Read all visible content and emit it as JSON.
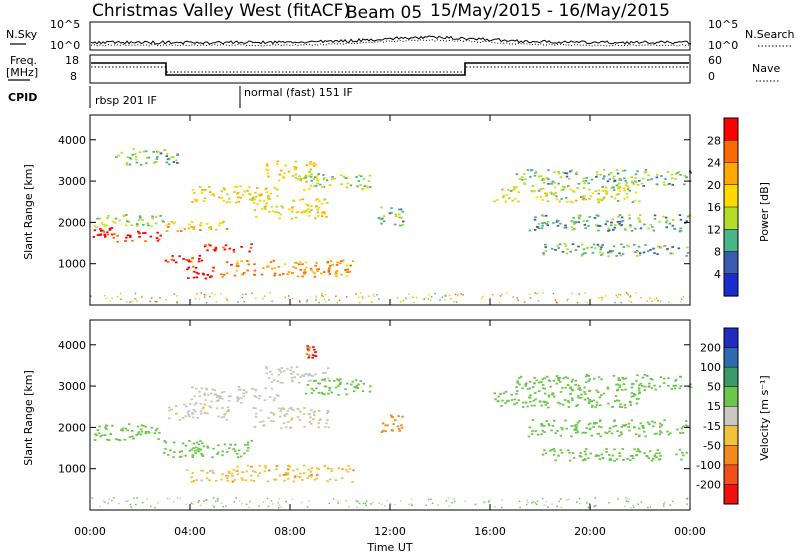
{
  "header": {
    "site": "Christmas Valley West (fitACF)",
    "beam": "Beam 05",
    "dates": "15/May/2015 - 16/May/2015"
  },
  "top_panels": {
    "nsky_label": "N.Sky",
    "nsearch_label": "N.Search",
    "noise_ticks_left": [
      "10^5",
      "10^0"
    ],
    "noise_ticks_right": [
      "10^5",
      "10^0"
    ],
    "freq_label": "Freq.",
    "freq_unit": "[MHz]",
    "freq_ticks": [
      "18",
      "8"
    ],
    "nave_label": "Nave",
    "nave_ticks": [
      "60",
      "0"
    ],
    "cpid_label": "CPID",
    "cpid_segments": [
      {
        "start_hour": 0,
        "name": "rbsp 201 IF"
      },
      {
        "start_hour": 6,
        "name": "normal (fast) 151 IF"
      }
    ]
  },
  "chart_data": [
    {
      "type": "heatmap",
      "title": "",
      "xlabel": "",
      "ylabel": "Slant Range [km]",
      "xlim": [
        0,
        24
      ],
      "ylim": [
        0,
        4600
      ],
      "y_ticks": [
        1000,
        2000,
        3000,
        4000
      ],
      "colorbar": {
        "label": "Power [dB]",
        "ticks": [
          "28",
          "24",
          "20",
          "16",
          "12",
          "8",
          "4"
        ],
        "colors": [
          "#ff0000",
          "#ff6a00",
          "#ffa800",
          "#ffd800",
          "#b4dc28",
          "#4ab48a",
          "#3c5cb0",
          "#1a2ccc"
        ]
      },
      "echo_regions": [
        {
          "x": [
            0.1,
            0.9
          ],
          "y": [
            1650,
            1900
          ],
          "level": 27
        },
        {
          "x": [
            0.9,
            2.9
          ],
          "y": [
            1550,
            1800
          ],
          "level": 26
        },
        {
          "x": [
            2.9,
            4.5
          ],
          "y": [
            1050,
            1250
          ],
          "level": 26
        },
        {
          "x": [
            4.5,
            6.5
          ],
          "y": [
            1300,
            1500
          ],
          "level": 25
        },
        {
          "x": [
            3.7,
            4.9
          ],
          "y": [
            650,
            950
          ],
          "level": 27
        },
        {
          "x": [
            5.2,
            10.5
          ],
          "y": [
            700,
            1100
          ],
          "level": 20
        },
        {
          "x": [
            0.1,
            2.9
          ],
          "y": [
            1900,
            2200
          ],
          "level": 10
        },
        {
          "x": [
            3.0,
            5.5
          ],
          "y": [
            1800,
            2050
          ],
          "level": 16
        },
        {
          "x": [
            6.5,
            9.5
          ],
          "y": [
            2100,
            2600
          ],
          "level": 14
        },
        {
          "x": [
            4.0,
            7.5
          ],
          "y": [
            2500,
            2900
          ],
          "level": 13
        },
        {
          "x": [
            7.0,
            9.0
          ],
          "y": [
            3000,
            3500
          ],
          "level": 15
        },
        {
          "x": [
            8.5,
            11.2
          ],
          "y": [
            2800,
            3200
          ],
          "level": 10
        },
        {
          "x": [
            1.0,
            3.5
          ],
          "y": [
            3400,
            3800
          ],
          "level": 7
        },
        {
          "x": [
            11.5,
            12.5
          ],
          "y": [
            1900,
            2400
          ],
          "level": 6
        },
        {
          "x": [
            16.0,
            22.0
          ],
          "y": [
            2500,
            2900
          ],
          "level": 12
        },
        {
          "x": [
            17.0,
            24.0
          ],
          "y": [
            2900,
            3300
          ],
          "level": 7
        },
        {
          "x": [
            17.5,
            24.0
          ],
          "y": [
            1800,
            2200
          ],
          "level": 6
        },
        {
          "x": [
            18.0,
            24.0
          ],
          "y": [
            1200,
            1500
          ],
          "level": 6
        }
      ]
    },
    {
      "type": "heatmap",
      "title": "",
      "xlabel": "Time UT",
      "ylabel": "Slant Range [km]",
      "xlim": [
        0,
        24
      ],
      "ylim": [
        0,
        4600
      ],
      "x_ticks": [
        "00:00",
        "04:00",
        "08:00",
        "12:00",
        "16:00",
        "20:00",
        "00:00"
      ],
      "y_ticks": [
        1000,
        2000,
        3000,
        4000
      ],
      "colorbar": {
        "label": "Velocity [m s⁻¹]",
        "ticks": [
          "200",
          "100",
          "50",
          "15",
          "-15",
          "-50",
          "-100",
          "-200"
        ],
        "colors": [
          "#1f2cc0",
          "#2f6ab0",
          "#3c9a6a",
          "#6cc64a",
          "#c8c8c0",
          "#f2c23a",
          "#f28a1e",
          "#f2501a",
          "#f01010"
        ]
      },
      "echo_regions": [
        {
          "x": [
            0.1,
            2.9
          ],
          "y": [
            1700,
            2100
          ],
          "value": 0
        },
        {
          "x": [
            2.9,
            6.5
          ],
          "y": [
            1300,
            1700
          ],
          "value": 0
        },
        {
          "x": [
            3.7,
            5.0
          ],
          "y": [
            700,
            1000
          ],
          "value": -60
        },
        {
          "x": [
            5.2,
            10.5
          ],
          "y": [
            700,
            1100
          ],
          "value": -90
        },
        {
          "x": [
            3.0,
            5.5
          ],
          "y": [
            2200,
            2600
          ],
          "value": -40
        },
        {
          "x": [
            6.5,
            9.5
          ],
          "y": [
            2000,
            2500
          ],
          "value": -40
        },
        {
          "x": [
            4.0,
            7.5
          ],
          "y": [
            2600,
            3000
          ],
          "value": -30
        },
        {
          "x": [
            7.0,
            9.5
          ],
          "y": [
            3100,
            3500
          ],
          "value": -30
        },
        {
          "x": [
            8.5,
            11.2
          ],
          "y": [
            2800,
            3200
          ],
          "value": 0
        },
        {
          "x": [
            11.6,
            12.5
          ],
          "y": [
            1900,
            2400
          ],
          "value": -150
        },
        {
          "x": [
            16.0,
            22.0
          ],
          "y": [
            2500,
            2900
          ],
          "value": 0
        },
        {
          "x": [
            17.0,
            24.0
          ],
          "y": [
            2900,
            3300
          ],
          "value": 0
        },
        {
          "x": [
            17.5,
            24.0
          ],
          "y": [
            1800,
            2200
          ],
          "value": 0
        },
        {
          "x": [
            18.0,
            24.0
          ],
          "y": [
            1200,
            1500
          ],
          "value": 0
        },
        {
          "x": [
            8.6,
            9.0
          ],
          "y": [
            3700,
            4000
          ],
          "value": -200
        }
      ]
    }
  ]
}
